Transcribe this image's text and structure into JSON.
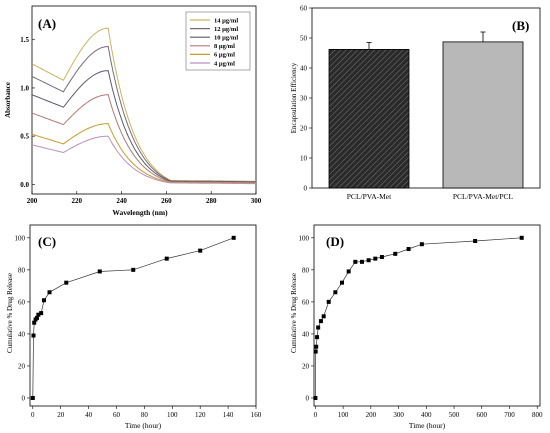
{
  "chart_data": [
    {
      "panel": "(A)",
      "type": "line",
      "xlabel": "Wavelength (nm)",
      "ylabel": "Absorbance",
      "xlim": [
        200,
        300
      ],
      "ylim": [
        -0.1,
        1.85
      ],
      "xticks": [
        "200",
        "220",
        "240",
        "260",
        "280",
        "300"
      ],
      "yticks": [
        "0.0",
        "0.5",
        "1.0",
        "1.5"
      ],
      "legend_position": "top-right",
      "legend": [
        "14 µg/ml",
        "12 µg/ml",
        "10 µg/ml",
        "8 µg/ml",
        "6 µg/ml",
        "4 µg/ml"
      ],
      "series": [
        {
          "name": "14 µg/ml",
          "color": "#c8b560",
          "start": 1.25,
          "min": 1.08,
          "peak": 1.62,
          "tail": 0.04
        },
        {
          "name": "12 µg/ml",
          "color": "#7a6a78",
          "start": 1.12,
          "min": 0.96,
          "peak": 1.43,
          "tail": 0.035
        },
        {
          "name": "10 µg/ml",
          "color": "#5b5a6e",
          "start": 0.93,
          "min": 0.8,
          "peak": 1.18,
          "tail": 0.03
        },
        {
          "name": "8 µg/ml",
          "color": "#b07a74",
          "start": 0.74,
          "min": 0.62,
          "peak": 0.93,
          "tail": 0.025
        },
        {
          "name": "6 µg/ml",
          "color": "#c79a2c",
          "start": 0.52,
          "min": 0.42,
          "peak": 0.63,
          "tail": 0.02
        },
        {
          "name": "4 µg/ml",
          "color": "#b890c0",
          "start": 0.41,
          "min": 0.33,
          "peak": 0.5,
          "tail": 0.015
        }
      ]
    },
    {
      "panel": "(B)",
      "type": "bar",
      "ylabel": "Encapsulation Efficiency",
      "ylim": [
        0,
        60
      ],
      "yticks": [
        "0",
        "10",
        "20",
        "30",
        "40",
        "50",
        "60"
      ],
      "categories": [
        "PCL/PVA-Met",
        "PCL/PVA-Met/PCL"
      ],
      "values": [
        46.2,
        48.7
      ],
      "errors": [
        2.3,
        3.3
      ],
      "colors": [
        "#2a2a2a",
        "#b8b8b8"
      ]
    },
    {
      "panel": "(C)",
      "type": "scatter",
      "xlabel": "Time (hour)",
      "ylabel": "Cumulative % Drug Release",
      "xlim": [
        -2,
        160
      ],
      "ylim": [
        -5,
        108
      ],
      "xticks": [
        "0",
        "20",
        "40",
        "60",
        "80",
        "100",
        "120",
        "140",
        "160"
      ],
      "yticks": [
        "0",
        "20",
        "40",
        "60",
        "80",
        "100"
      ],
      "x": [
        0,
        0.5,
        1,
        2,
        3,
        4,
        6,
        8,
        12,
        24,
        48,
        72,
        96,
        120,
        144
      ],
      "y": [
        0,
        39,
        47,
        49,
        50,
        52,
        53,
        61,
        66,
        72,
        79,
        80,
        87,
        92,
        100
      ]
    },
    {
      "panel": "(D)",
      "type": "scatter",
      "xlabel": "Time (hour)",
      "ylabel": "Cumulative % Drug Release",
      "xlim": [
        -5,
        810
      ],
      "ylim": [
        -5,
        108
      ],
      "xticks": [
        "0",
        "100",
        "200",
        "300",
        "400",
        "500",
        "600",
        "700",
        "800"
      ],
      "yticks": [
        "0",
        "20",
        "40",
        "60",
        "80",
        "100"
      ],
      "x": [
        0,
        1,
        3,
        6,
        10,
        20,
        30,
        48,
        72,
        96,
        120,
        144,
        168,
        192,
        216,
        240,
        288,
        336,
        384,
        576,
        744
      ],
      "y": [
        0,
        29,
        32,
        38,
        44,
        48,
        51,
        60,
        66,
        72,
        79,
        85,
        85,
        86,
        87,
        88,
        90,
        93,
        96,
        98,
        100
      ]
    }
  ]
}
